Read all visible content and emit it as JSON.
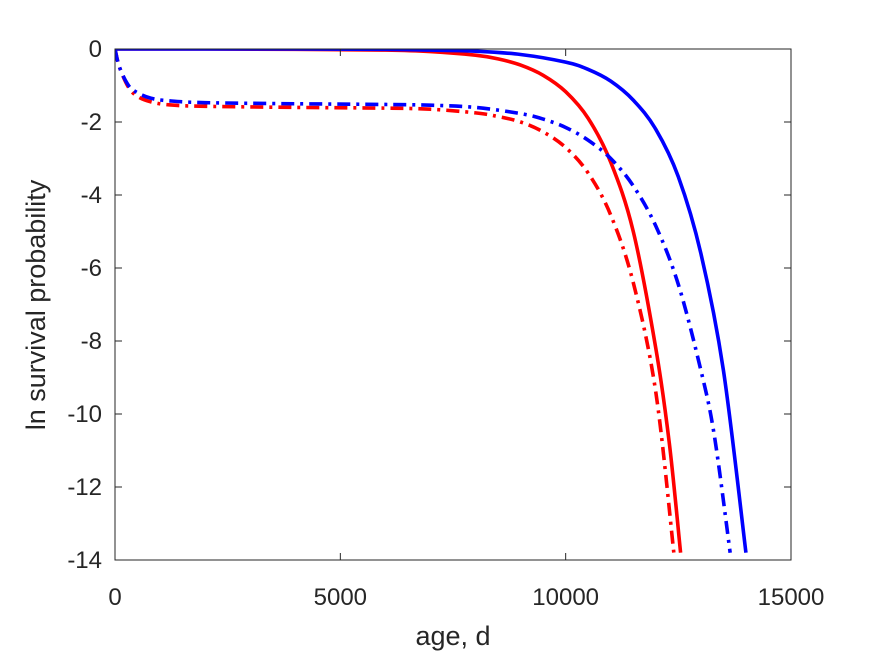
{
  "chart_data": {
    "type": "line",
    "xlabel": "age, d",
    "ylabel": "ln survival probability",
    "xlim": [
      0,
      15000
    ],
    "ylim": [
      -14,
      0
    ],
    "xticks": [
      0,
      5000,
      10000,
      15000
    ],
    "yticks": [
      0,
      -2,
      -4,
      -6,
      -8,
      -10,
      -12,
      -14
    ],
    "xtick_labels": [
      "0",
      "5000",
      "10000",
      "15000"
    ],
    "ytick_labels": [
      "0",
      "-2",
      "-4",
      "-6",
      "-8",
      "-10",
      "-12",
      "-14"
    ],
    "grid": false,
    "legend": "none",
    "series": [
      {
        "color": "#ff0000",
        "style": "solid",
        "x": [
          0,
          2000,
          4000,
          6000,
          7000,
          8000,
          8500,
          9000,
          9500,
          10000,
          10500,
          11000,
          11500,
          12000,
          12300,
          12550
        ],
        "y": [
          0,
          0,
          -0.01,
          -0.03,
          -0.07,
          -0.17,
          -0.27,
          -0.44,
          -0.72,
          -1.17,
          -1.9,
          -3.1,
          -5.0,
          -8.2,
          -10.8,
          -13.8
        ]
      },
      {
        "color": "#0000ff",
        "style": "solid",
        "x": [
          0,
          2000,
          4000,
          6000,
          7000,
          8000,
          9000,
          10000,
          10500,
          11000,
          11500,
          12000,
          12500,
          13000,
          13500,
          14000
        ],
        "y": [
          0,
          0,
          0,
          -0.01,
          -0.03,
          -0.06,
          -0.15,
          -0.36,
          -0.56,
          -0.88,
          -1.4,
          -2.2,
          -3.5,
          -5.6,
          -8.8,
          -13.8
        ]
      },
      {
        "color": "#ff0000",
        "style": "dashdot",
        "x": [
          0,
          100,
          300,
          500,
          800,
          1200,
          2000,
          4000,
          6000,
          7000,
          8000,
          8500,
          9000,
          9500,
          10000,
          10500,
          11000,
          11500,
          12000,
          12400
        ],
        "y": [
          0,
          -0.5,
          -1.05,
          -1.3,
          -1.45,
          -1.53,
          -1.57,
          -1.6,
          -1.62,
          -1.65,
          -1.75,
          -1.85,
          -2.0,
          -2.27,
          -2.7,
          -3.4,
          -4.55,
          -6.4,
          -9.4,
          -13.8
        ]
      },
      {
        "color": "#0000ff",
        "style": "dashdot",
        "x": [
          0,
          100,
          300,
          500,
          800,
          1200,
          2000,
          4000,
          6000,
          7000,
          8000,
          9000,
          9500,
          10000,
          10500,
          11000,
          11500,
          12000,
          12500,
          13000,
          13300,
          13650
        ],
        "y": [
          0,
          -0.5,
          -1.0,
          -1.2,
          -1.35,
          -1.42,
          -1.47,
          -1.5,
          -1.52,
          -1.54,
          -1.6,
          -1.77,
          -1.92,
          -2.15,
          -2.5,
          -3.0,
          -3.75,
          -4.85,
          -6.45,
          -8.8,
          -10.6,
          -13.8
        ]
      }
    ]
  }
}
